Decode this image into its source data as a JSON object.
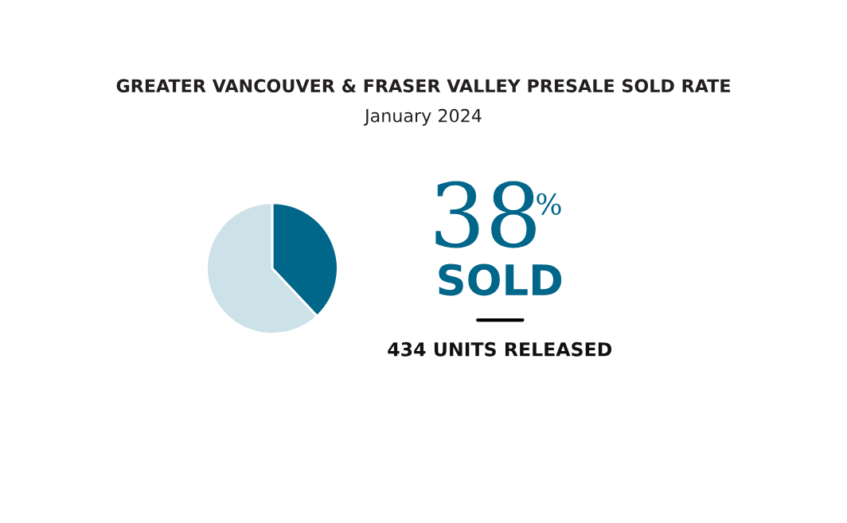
{
  "chart_data": {
    "type": "pie",
    "title": "GREATER VANCOUVER & FRASER VALLEY PRESALE SOLD RATE",
    "subtitle": "January 2024",
    "categories": [
      null,
      null
    ],
    "values": [
      38,
      62
    ],
    "colors": [
      "#00668a",
      "#cde1e8"
    ],
    "annotations": [
      "38",
      "%",
      "SOLD",
      "434 UNITS RELEASED"
    ]
  }
}
